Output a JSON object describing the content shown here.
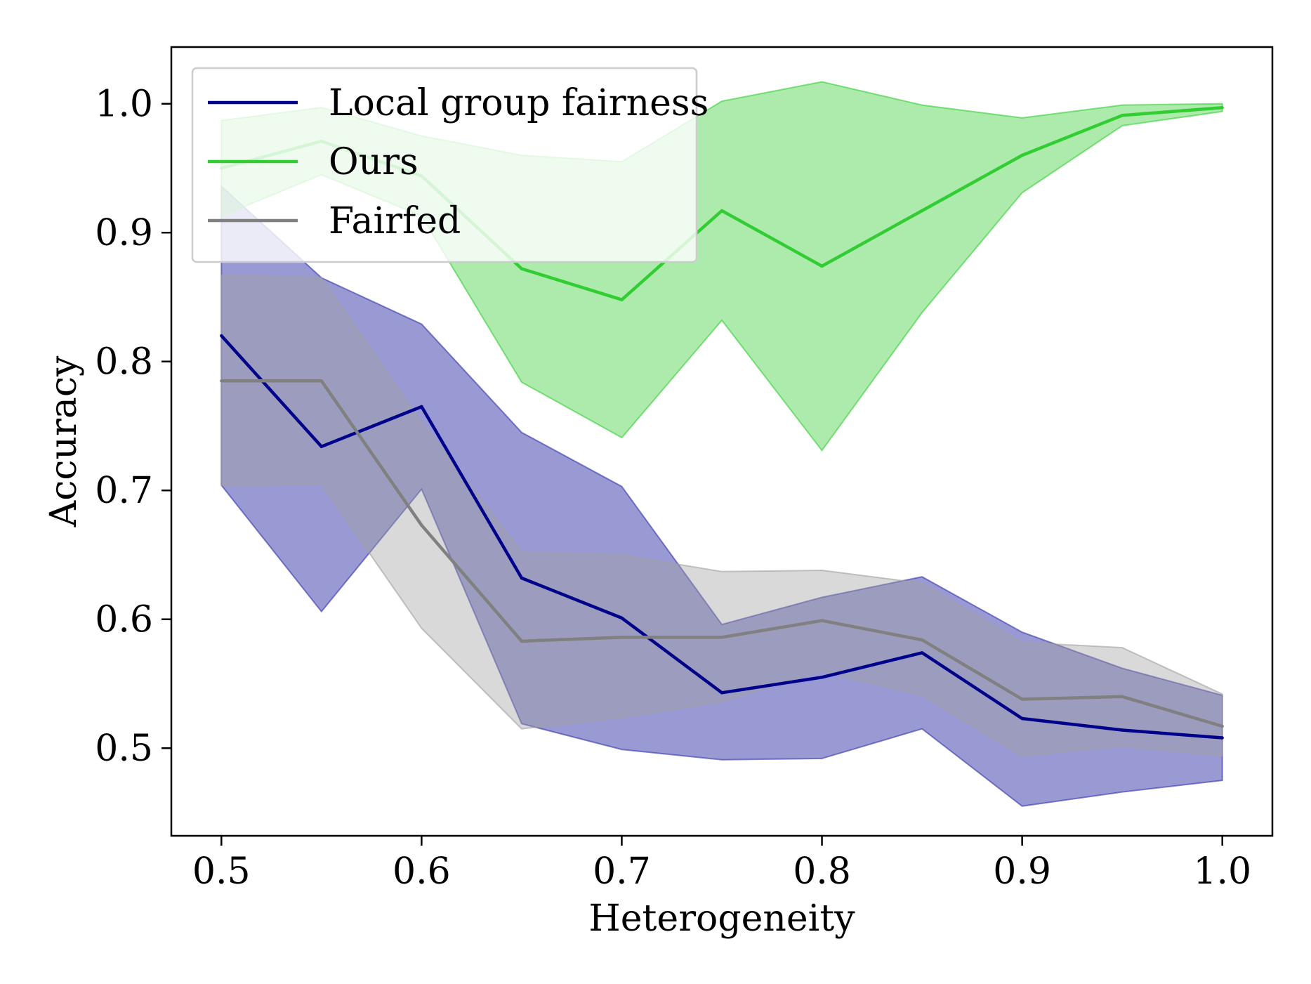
{
  "chart_data": {
    "type": "line",
    "title": "",
    "xlabel": "Heterogeneity",
    "ylabel": "Accuracy",
    "xlim": [
      0.475,
      1.025
    ],
    "ylim": [
      0.432,
      1.044
    ],
    "xticks": [
      0.5,
      0.6,
      0.7,
      0.8,
      0.9,
      1.0
    ],
    "xtick_labels": [
      "0.5",
      "0.6",
      "0.7",
      "0.8",
      "0.9",
      "1.0"
    ],
    "yticks": [
      0.5,
      0.6,
      0.7,
      0.8,
      0.9,
      1.0
    ],
    "ytick_labels": [
      "0.5",
      "0.6",
      "0.7",
      "0.8",
      "0.9",
      "1.0"
    ],
    "grid": false,
    "legend_position": "upper-left",
    "x": [
      0.5,
      0.55,
      0.6,
      0.65,
      0.7,
      0.75,
      0.8,
      0.85,
      0.9,
      0.95,
      1.0
    ],
    "series": [
      {
        "name": "Local group fairness",
        "color": "#00008b",
        "fill_color": "#3333aa",
        "values": [
          0.82,
          0.734,
          0.765,
          0.632,
          0.601,
          0.543,
          0.555,
          0.574,
          0.523,
          0.514,
          0.508
        ],
        "upper": [
          0.936,
          0.865,
          0.829,
          0.745,
          0.703,
          0.596,
          0.617,
          0.633,
          0.59,
          0.562,
          0.541
        ],
        "lower": [
          0.704,
          0.606,
          0.701,
          0.519,
          0.499,
          0.491,
          0.492,
          0.515,
          0.455,
          0.466,
          0.475
        ]
      },
      {
        "name": "Ours",
        "color": "#32cd32",
        "fill_color": "#32cd32",
        "values": [
          0.95,
          0.971,
          0.944,
          0.872,
          0.848,
          0.917,
          0.874,
          0.917,
          0.96,
          0.991,
          0.997
        ],
        "upper": [
          0.987,
          0.997,
          0.975,
          0.96,
          0.955,
          1.002,
          1.017,
          0.999,
          0.989,
          0.999,
          1.0
        ],
        "lower": [
          0.913,
          0.945,
          0.913,
          0.784,
          0.741,
          0.832,
          0.731,
          0.838,
          0.931,
          0.983,
          0.994
        ]
      },
      {
        "name": "Fairfed",
        "color": "#808080",
        "fill_color": "#a0a0a0",
        "values": [
          0.785,
          0.785,
          0.673,
          0.583,
          0.586,
          0.586,
          0.599,
          0.584,
          0.538,
          0.54,
          0.517
        ],
        "upper": [
          0.867,
          0.865,
          0.753,
          0.652,
          0.65,
          0.637,
          0.638,
          0.628,
          0.582,
          0.578,
          0.542
        ],
        "lower": [
          0.704,
          0.705,
          0.593,
          0.515,
          0.524,
          0.536,
          0.56,
          0.541,
          0.494,
          0.502,
          0.494
        ]
      }
    ]
  }
}
